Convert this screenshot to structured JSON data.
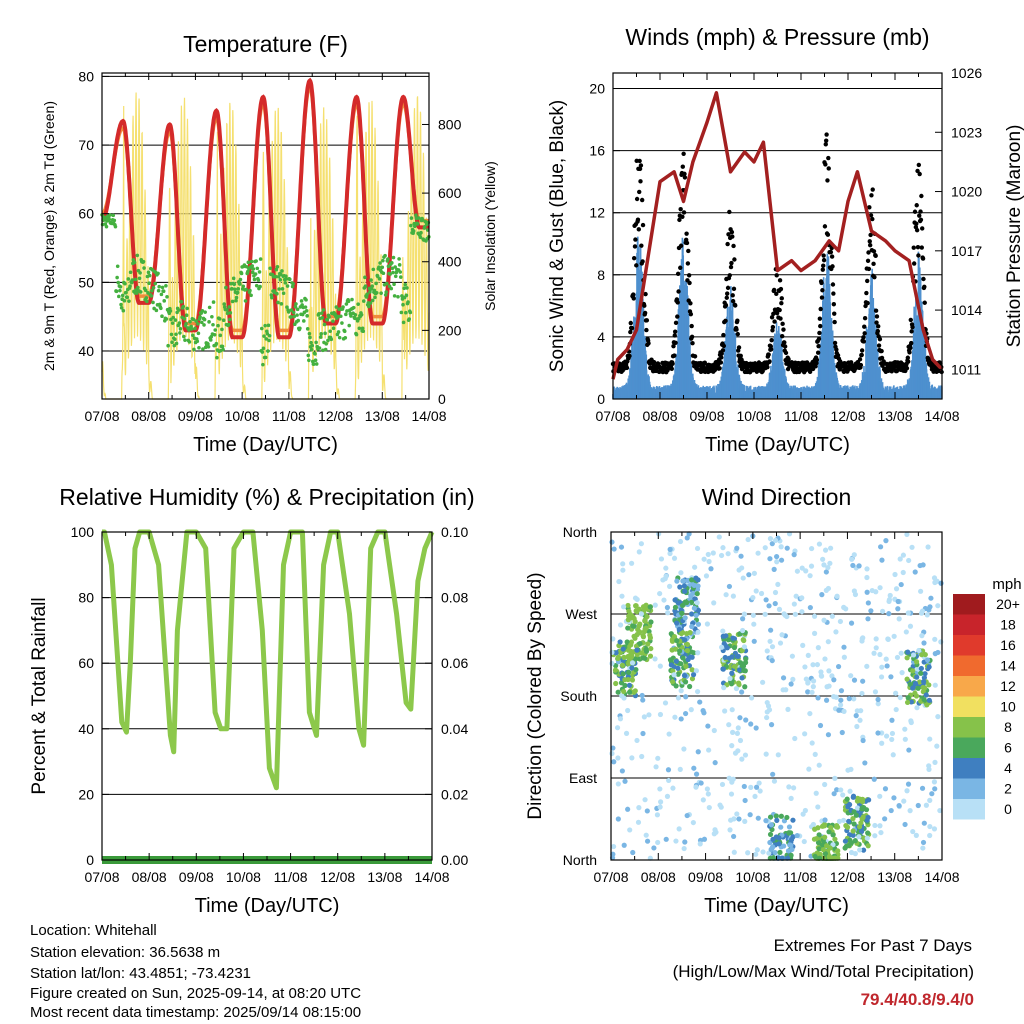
{
  "chart_data": [
    {
      "type": "line",
      "title": "Temperature (F)",
      "xlabel": "Time (Day/UTC)",
      "ylabel": "2m & 9m T (Red, Orange) & 2m Td (Green)",
      "y2label": "Solar Insolation (Yellow)",
      "x_ticks": [
        "07/08",
        "08/08",
        "09/08",
        "10/08",
        "11/08",
        "12/08",
        "13/08",
        "14/08"
      ],
      "ylim": [
        33,
        80.5
      ],
      "y_ticks": [
        40,
        50,
        60,
        70,
        80
      ],
      "y2lim": [
        0,
        950
      ],
      "y2_ticks": [
        0,
        200,
        400,
        600,
        800
      ],
      "gridlines": [
        40,
        50,
        60,
        70,
        80
      ],
      "series": [
        {
          "color": "#d42a2a",
          "daily_max": [
            73.5,
            73.0,
            75.0,
            77.0,
            79.4,
            77.0,
            77.0,
            77.5
          ],
          "daily_min": [
            59,
            47,
            43,
            42,
            42,
            44,
            44,
            58
          ]
        },
        {
          "color": "#f08c3c",
          "daily_max": [
            72.5,
            72.0,
            74.0,
            76.0,
            78.5,
            76.0,
            76.0,
            76.5
          ],
          "daily_min": [
            60,
            48,
            44,
            43,
            43,
            45,
            45,
            59
          ]
        },
        {
          "color": "#44b03f",
          "values_summary": {
            "range": [
              35,
              61
            ]
          }
        },
        {
          "color": "#f5e070",
          "daily_peak": [
            900,
            880,
            870,
            860,
            850,
            880,
            890,
            0
          ]
        }
      ]
    },
    {
      "type": "scatter",
      "title": "Winds (mph) & Pressure (mb)",
      "xlabel": "Time (Day/UTC)",
      "ylabel": "Sonic Wind & Gust (Blue, Black)",
      "y2label": "Station Pressure (Maroon)",
      "x_ticks": [
        "07/08",
        "08/08",
        "09/08",
        "10/08",
        "11/08",
        "12/08",
        "13/08",
        "14/08"
      ],
      "ylim": [
        0,
        21
      ],
      "y_ticks": [
        0,
        4,
        8,
        12,
        16,
        20
      ],
      "y2lim": [
        1009.5,
        1026
      ],
      "y2_ticks": [
        1011,
        1014,
        1017,
        1020,
        1023,
        1026
      ],
      "gridlines": [
        4,
        8,
        12,
        16,
        20,
        21
      ],
      "pressure": {
        "color": "#a32020",
        "x": [
          0,
          0.1,
          0.3,
          0.5,
          0.8,
          1.0,
          1.3,
          1.5,
          1.7,
          2.0,
          2.2,
          2.5,
          2.8,
          3.0,
          3.2,
          3.5,
          3.8,
          4.0,
          4.3,
          4.6,
          4.8,
          5.0,
          5.2,
          5.5,
          5.8,
          6.0,
          6.3,
          6.6,
          6.8,
          7.0
        ],
        "y": [
          1010.5,
          1011.5,
          1012.0,
          1013.0,
          1017.5,
          1020.5,
          1021.0,
          1019.5,
          1021.5,
          1023.5,
          1025.0,
          1021.0,
          1022.0,
          1021.5,
          1022.5,
          1016.0,
          1016.5,
          1016.0,
          1016.5,
          1017.5,
          1017.0,
          1019.5,
          1021.0,
          1018.0,
          1017.5,
          1017.0,
          1016.5,
          1013.0,
          1011.5,
          1011.0
        ]
      }
    },
    {
      "type": "line",
      "title": "Relative Humidity (%) & Precipitation (in)",
      "xlabel": "Time (Day/UTC)",
      "ylabel": "Percent & Total Rainfall",
      "x_ticks": [
        "07/08",
        "08/08",
        "09/08",
        "10/08",
        "11/08",
        "12/08",
        "13/08",
        "14/08"
      ],
      "ylim": [
        0,
        100
      ],
      "y_ticks": [
        0,
        20,
        40,
        60,
        80,
        100
      ],
      "y2lim": [
        0,
        0.1
      ],
      "y2_ticks": [
        "0.00",
        "0.02",
        "0.04",
        "0.06",
        "0.08",
        "0.10"
      ],
      "gridlines": [
        20,
        40,
        60,
        80,
        100
      ],
      "series": [
        {
          "color": "#8cc84b",
          "x": [
            0,
            0.05,
            0.2,
            0.42,
            0.52,
            0.6,
            0.7,
            0.8,
            1.0,
            1.2,
            1.45,
            1.52,
            1.6,
            1.8,
            2.0,
            2.2,
            2.4,
            2.52,
            2.65,
            2.8,
            3.0,
            3.2,
            3.4,
            3.55,
            3.7,
            3.85,
            4.0,
            4.25,
            4.4,
            4.55,
            4.7,
            4.85,
            5.0,
            5.25,
            5.45,
            5.55,
            5.7,
            5.85,
            6.0,
            6.25,
            6.45,
            6.55,
            6.7,
            6.85,
            7.0
          ],
          "y": [
            100,
            100,
            90,
            42,
            39,
            60,
            95,
            100,
            100,
            90,
            38,
            33,
            70,
            100,
            100,
            95,
            45,
            40,
            40,
            95,
            100,
            100,
            70,
            28,
            22,
            90,
            100,
            100,
            45,
            38,
            90,
            100,
            100,
            75,
            40,
            35,
            95,
            100,
            100,
            75,
            48,
            46,
            85,
            95,
            100
          ]
        },
        {
          "color": "#3a9a3a",
          "constant": 0
        }
      ]
    },
    {
      "type": "scatter",
      "title": "Wind Direction",
      "xlabel": "Time (Day/UTC)",
      "ylabel": "Direction (Colored By Speed)",
      "x_ticks": [
        "07/08",
        "08/08",
        "09/08",
        "10/08",
        "11/08",
        "12/08",
        "13/08",
        "14/08"
      ],
      "y_ticks": [
        "North",
        "East",
        "South",
        "West",
        "North"
      ],
      "ylim": [
        0,
        360
      ],
      "legend": {
        "title": "mph",
        "labels": [
          "20+",
          "18",
          "16",
          "14",
          "12",
          "10",
          "8",
          "6",
          "4",
          "2",
          "0"
        ],
        "colors": [
          "#a01b1e",
          "#c8242b",
          "#e03a2c",
          "#f06a2e",
          "#f8a84a",
          "#f1e060",
          "#86c24a",
          "#4aa85c",
          "#3f7fc0",
          "#7ab6e4",
          "#b8e0f6"
        ],
        "position": "right"
      }
    }
  ],
  "footer": {
    "location": "Location: Whitehall",
    "elevation": "Station elevation: 36.5638 m",
    "latlon": "Station lat/lon: 43.4851; -73.4231",
    "created": "Figure created on Sun, 2025-09-14, at 08:20 UTC",
    "recent": "Most recent data timestamp: 2025/09/14 08:15:00"
  },
  "extremes": {
    "line1": "Extremes For Past 7 Days",
    "line2": "(High/Low/Max Wind/Total Precipitation)",
    "values": "79.4/40.8/9.4/0"
  }
}
